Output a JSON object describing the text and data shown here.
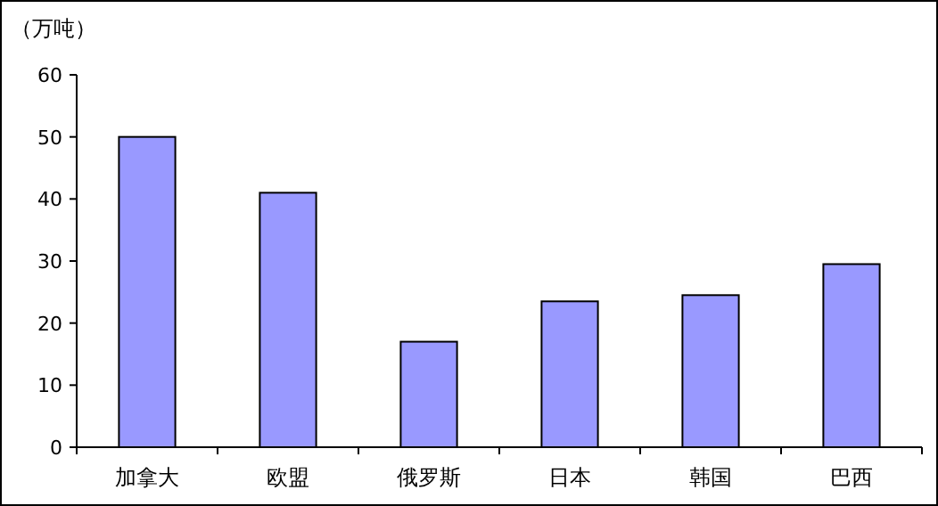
{
  "chart_data": {
    "type": "bar",
    "ylabel": "（万吨）",
    "categories": [
      "加拿大",
      "欧盟",
      "俄罗斯",
      "日本",
      "韩国",
      "巴西"
    ],
    "values": [
      50,
      41,
      17,
      23.5,
      24.5,
      29.5
    ],
    "color": "#9999ff",
    "ylim": [
      0,
      60
    ],
    "yticks": [
      0,
      10,
      20,
      30,
      40,
      50,
      60
    ],
    "grid": false
  }
}
